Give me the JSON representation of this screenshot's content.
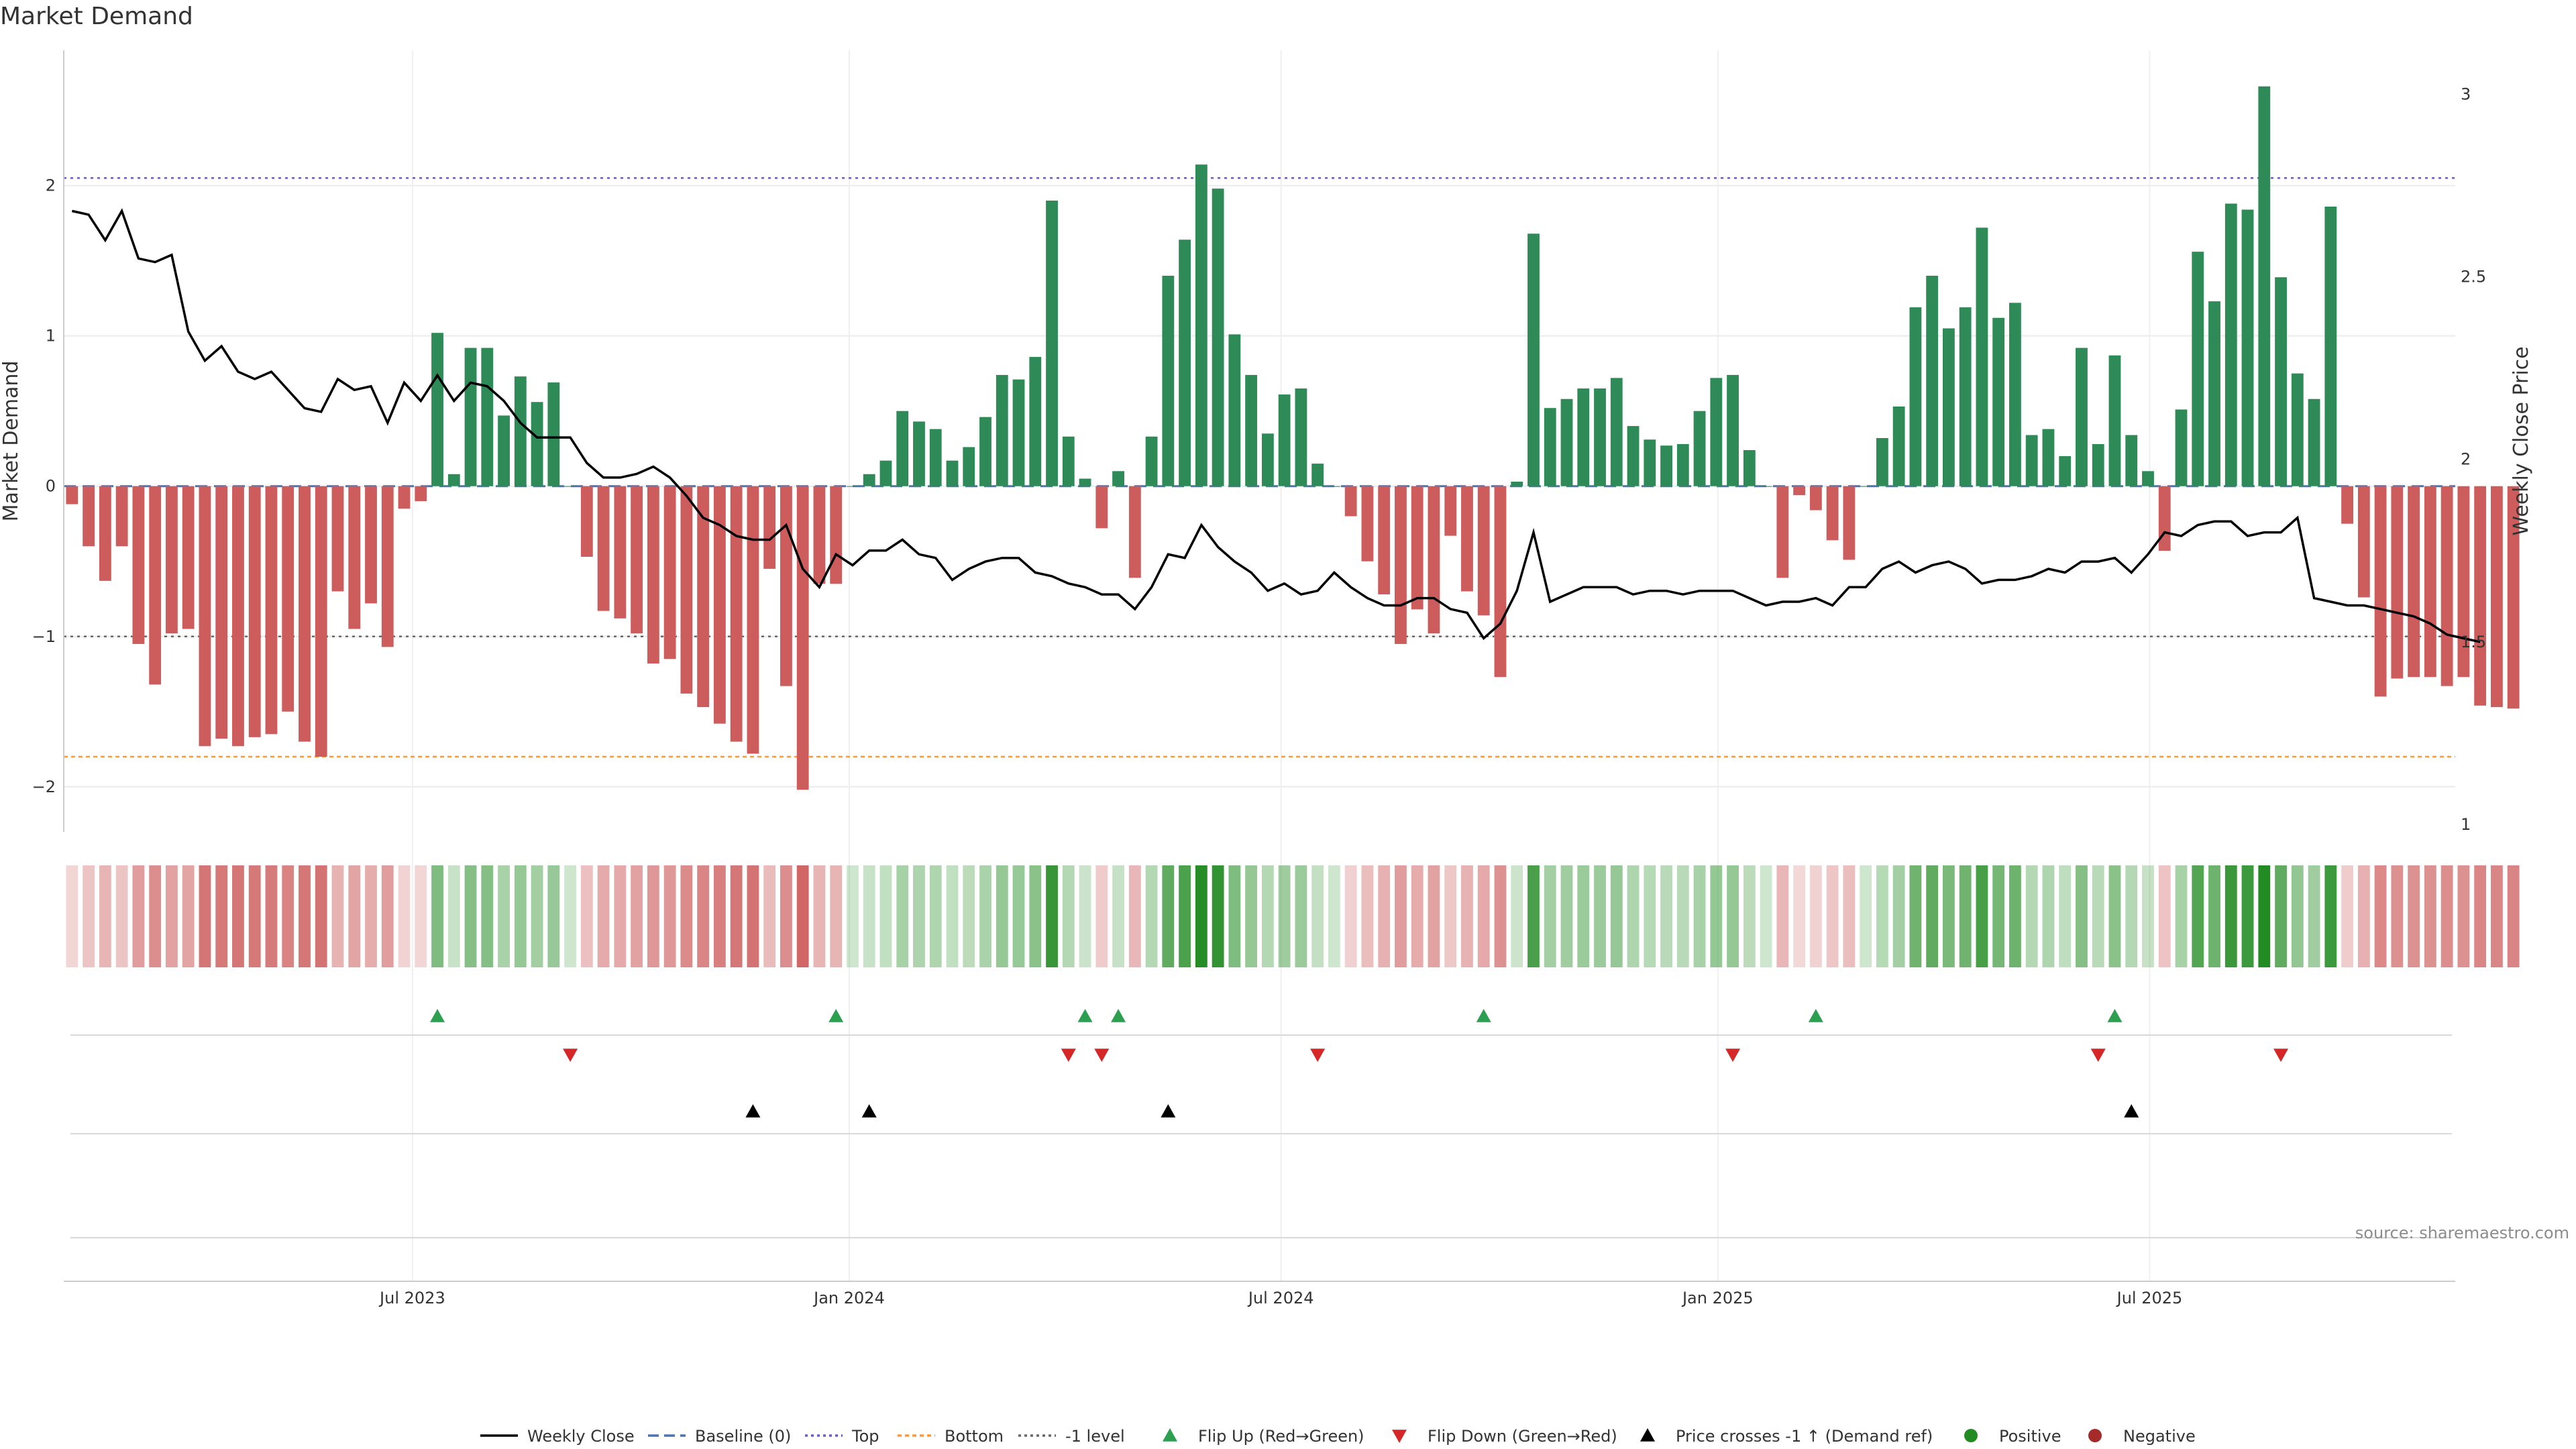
{
  "chart_data": {
    "type": "bar",
    "title": "Market Demand",
    "ylabel_left": "Market Demand",
    "ylabel_right": "Weekly Close Price",
    "ylim_left": [
      -2.3,
      2.9
    ],
    "ylim_right": [
      0.98,
      3.12
    ],
    "yticks_left": [
      2,
      1,
      0,
      -1,
      -2
    ],
    "yticks_left_labels": [
      "2",
      "1",
      "0",
      "−1",
      "−2"
    ],
    "yticks_right": [
      3,
      2.5,
      2,
      1.5,
      1
    ],
    "yticks_right_labels": [
      "3",
      "2.5",
      "2",
      "1.5",
      "1"
    ],
    "reference_lines": {
      "top": 2.05,
      "bottom": -1.8,
      "minus_one": -1.0,
      "baseline": 0
    },
    "x_start_week": 0,
    "x_end_week": 144,
    "xticks": [
      {
        "label": "Jul 2023",
        "week": 21
      },
      {
        "label": "Jan 2024",
        "week": 47.3
      },
      {
        "label": "Jul 2024",
        "week": 73.3
      },
      {
        "label": "Jan 2025",
        "week": 99.6
      },
      {
        "label": "Jul 2025",
        "week": 125.6
      }
    ],
    "demand": [
      -0.12,
      -0.4,
      -0.63,
      -0.4,
      -1.05,
      -1.32,
      -0.98,
      -0.95,
      -1.73,
      -1.68,
      -1.73,
      -1.67,
      -1.65,
      -1.5,
      -1.7,
      -1.8,
      -0.7,
      -0.95,
      -0.78,
      -1.07,
      -0.15,
      -0.1,
      1.02,
      0.08,
      0.92,
      0.92,
      0.47,
      0.73,
      0.56,
      0.69,
      0,
      -0.47,
      -0.83,
      -0.88,
      -0.98,
      -1.18,
      -1.15,
      -1.38,
      -1.47,
      -1.58,
      -1.7,
      -1.78,
      -0.55,
      -1.33,
      -2.02,
      -0.65,
      -0.65,
      0,
      0.08,
      0.17,
      0.5,
      0.43,
      0.38,
      0.17,
      0.26,
      0.46,
      0.74,
      0.71,
      0.86,
      1.9,
      0.33,
      0.05,
      -0.28,
      0.1,
      -0.61,
      0.33,
      1.4,
      1.64,
      2.14,
      1.98,
      1.01,
      0.74,
      0.35,
      0.61,
      0.65,
      0.15,
      0,
      -0.2,
      -0.5,
      -0.72,
      -1.05,
      -0.82,
      -0.98,
      -0.33,
      -0.7,
      -0.86,
      -1.27,
      0.03,
      1.68,
      0.52,
      0.58,
      0.65,
      0.65,
      0.72,
      0.4,
      0.31,
      0.27,
      0.28,
      0.5,
      0.72,
      0.74,
      0.24,
      0,
      -0.61,
      -0.06,
      -0.16,
      -0.36,
      -0.49,
      0,
      0.32,
      0.53,
      1.19,
      1.4,
      1.05,
      1.19,
      1.72,
      1.12,
      1.22,
      0.34,
      0.38,
      0.2,
      0.92,
      0.28,
      0.87,
      0.34,
      0.1,
      -0.43,
      0.51,
      1.56,
      1.23,
      1.88,
      1.84,
      2.66,
      1.39,
      0.75,
      0.58,
      1.86,
      -0.25,
      -0.74,
      -1.4,
      -1.28,
      -1.27,
      -1.27,
      -1.33,
      -1.27,
      -1.46,
      -1.47,
      -1.48
    ],
    "weekly_close": [
      2.68,
      2.67,
      2.6,
      2.68,
      2.55,
      2.54,
      2.56,
      2.35,
      2.27,
      2.31,
      2.24,
      2.22,
      2.24,
      2.19,
      2.14,
      2.13,
      2.22,
      2.19,
      2.2,
      2.1,
      2.21,
      2.16,
      2.23,
      2.16,
      2.21,
      2.2,
      2.16,
      2.1,
      2.06,
      2.06,
      2.06,
      1.99,
      1.95,
      1.95,
      1.96,
      1.98,
      1.95,
      1.9,
      1.84,
      1.82,
      1.79,
      1.78,
      1.78,
      1.82,
      1.7,
      1.65,
      1.74,
      1.71,
      1.75,
      1.75,
      1.78,
      1.74,
      1.73,
      1.67,
      1.7,
      1.72,
      1.73,
      1.73,
      1.69,
      1.68,
      1.66,
      1.65,
      1.63,
      1.63,
      1.59,
      1.65,
      1.74,
      1.73,
      1.82,
      1.76,
      1.72,
      1.69,
      1.64,
      1.66,
      1.63,
      1.64,
      1.69,
      1.65,
      1.62,
      1.6,
      1.6,
      1.62,
      1.62,
      1.59,
      1.58,
      1.51,
      1.55,
      1.64,
      1.8,
      1.61,
      1.63,
      1.65,
      1.65,
      1.65,
      1.63,
      1.64,
      1.64,
      1.63,
      1.64,
      1.64,
      1.64,
      1.62,
      1.6,
      1.61,
      1.61,
      1.62,
      1.6,
      1.65,
      1.65,
      1.7,
      1.72,
      1.69,
      1.71,
      1.72,
      1.7,
      1.66,
      1.67,
      1.67,
      1.68,
      1.7,
      1.69,
      1.72,
      1.72,
      1.73,
      1.69,
      1.74,
      1.8,
      1.79,
      1.82,
      1.83,
      1.83,
      1.79,
      1.8,
      1.8,
      1.84,
      1.62,
      1.61,
      1.6,
      1.6,
      1.59,
      1.58,
      1.57,
      1.55,
      1.52,
      1.51,
      1.5
    ],
    "flip_up_weeks": [
      22,
      46,
      61,
      63,
      85,
      105,
      123
    ],
    "flip_down_weeks": [
      30,
      60,
      62,
      75,
      100,
      122,
      133
    ],
    "price_cross_weeks": [
      41,
      48,
      66,
      124
    ],
    "legend": [
      "Weekly Close",
      "Baseline (0)",
      "Top",
      "Bottom",
      "-1 level",
      "Flip Up (Red→Green)",
      "Flip Down (Green→Red)",
      "Price crosses -1 ↑ (Demand ref)",
      "Positive",
      "Negative"
    ],
    "source": "source: sharemaestro.com"
  },
  "colors": {
    "positive_bar": "#2e8b57",
    "negative_bar": "#cd5c5c",
    "flip_up": "#2ca050",
    "flip_down": "#d62728",
    "price_cross": "#000000",
    "top_line": "#6a5acd",
    "bottom_line": "#ff9933",
    "minus_one_line": "#666666",
    "baseline": "#4c72b0",
    "close_line": "#000000",
    "positive_dot": "#228b22",
    "negative_dot": "#a52a2a"
  }
}
